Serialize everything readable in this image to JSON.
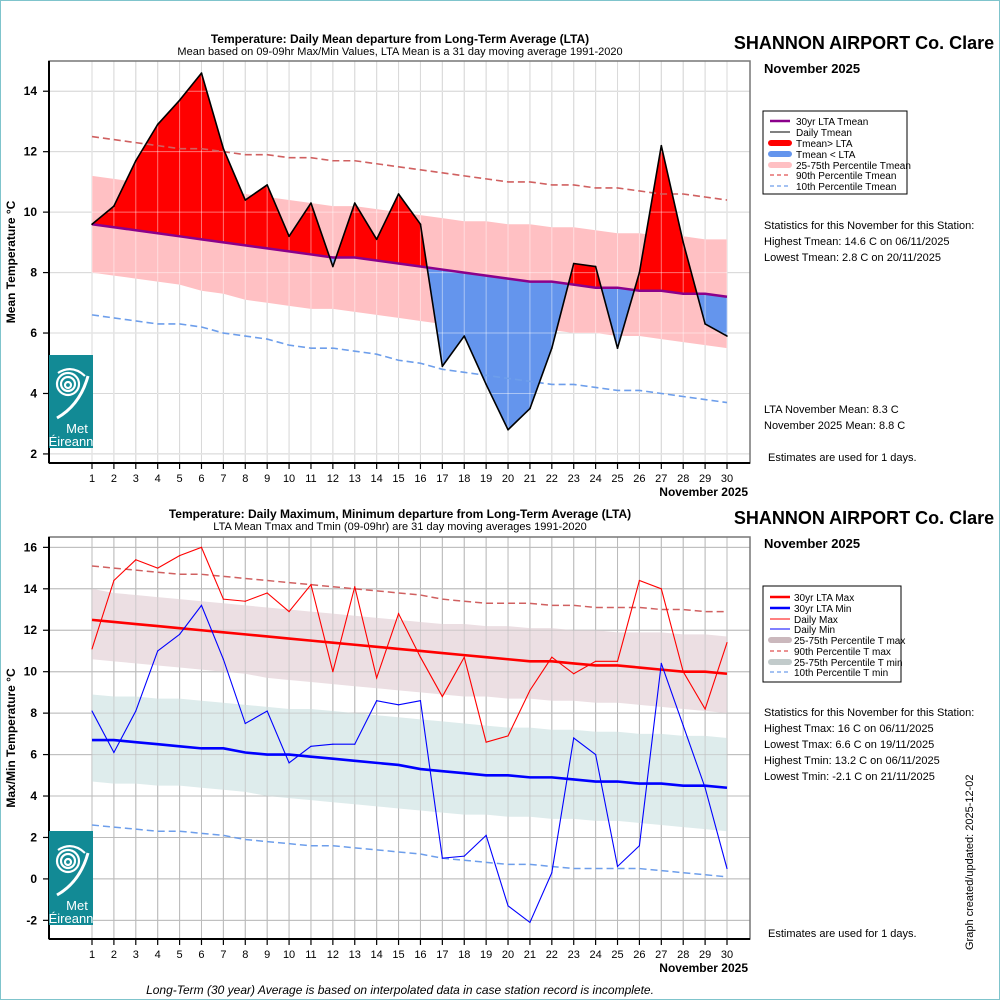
{
  "station": "SHANNON AIRPORT Co. Clare",
  "month_label": "November 2025",
  "footer_note": "Long-Term (30 year) Average is based on interpolated data in case station record is incomplete.",
  "updated_label": "Graph created/updated:  2025-12-02",
  "logo": {
    "line1": "Met",
    "line2": "Éireann",
    "icon": "met-eireann-swirl-icon"
  },
  "colors": {
    "above_lta": "#ff0000",
    "below_lta": "#6495ed",
    "lta_mean": "#8b008b",
    "pct_band_mean": "#ffc0c3",
    "p90": "#d06060",
    "p10": "#6d9eeb",
    "lta_max": "#ff0000",
    "lta_min": "#0000ff",
    "band_max": "#ecdfe3",
    "band_min": "#deecec",
    "logo_bg": "#128a95"
  },
  "chart_data": [
    {
      "type": "area",
      "title": "Temperature: Daily Mean departure from Long-Term Average (LTA)",
      "subtitle": "Mean based on 09-09hr Max/Min Values, LTA Mean is a 31 day moving average 1991-2020",
      "xlabel": "November 2025",
      "ylabel": "Mean Temperature °C",
      "ylim": [
        1.7,
        15.0
      ],
      "yticks": [
        2,
        4,
        6,
        8,
        10,
        12,
        14
      ],
      "x": [
        1,
        2,
        3,
        4,
        5,
        6,
        7,
        8,
        9,
        10,
        11,
        12,
        13,
        14,
        15,
        16,
        17,
        18,
        19,
        20,
        21,
        22,
        23,
        24,
        25,
        26,
        27,
        28,
        29,
        30
      ],
      "grid": true,
      "series": [
        {
          "name": "Daily Tmean",
          "values": [
            9.6,
            10.2,
            11.7,
            12.9,
            13.7,
            14.6,
            12.1,
            10.4,
            10.9,
            9.2,
            10.3,
            8.2,
            10.3,
            9.1,
            10.6,
            9.6,
            4.9,
            5.9,
            4.3,
            2.8,
            3.5,
            5.5,
            8.3,
            8.2,
            5.5,
            8.0,
            12.2,
            9.0,
            6.3,
            5.9
          ]
        },
        {
          "name": "30yr LTA Tmean",
          "values": [
            9.6,
            9.5,
            9.4,
            9.3,
            9.2,
            9.1,
            9.0,
            8.9,
            8.8,
            8.7,
            8.6,
            8.5,
            8.5,
            8.4,
            8.3,
            8.2,
            8.1,
            8.0,
            7.9,
            7.8,
            7.7,
            7.7,
            7.6,
            7.5,
            7.5,
            7.4,
            7.4,
            7.3,
            7.3,
            7.2
          ]
        },
        {
          "name": "90th Percentile Tmean",
          "values": [
            12.5,
            12.4,
            12.3,
            12.2,
            12.1,
            12.1,
            12.0,
            11.9,
            11.9,
            11.8,
            11.8,
            11.7,
            11.7,
            11.6,
            11.5,
            11.4,
            11.3,
            11.2,
            11.1,
            11.0,
            11.0,
            10.9,
            10.9,
            10.8,
            10.8,
            10.7,
            10.6,
            10.6,
            10.5,
            10.4
          ]
        },
        {
          "name": "10th Percentile Tmean",
          "values": [
            6.6,
            6.5,
            6.4,
            6.3,
            6.3,
            6.2,
            6.0,
            5.9,
            5.8,
            5.6,
            5.5,
            5.5,
            5.4,
            5.3,
            5.1,
            5.0,
            4.8,
            4.7,
            4.6,
            4.5,
            4.4,
            4.3,
            4.3,
            4.2,
            4.1,
            4.1,
            4.0,
            3.9,
            3.8,
            3.7
          ]
        },
        {
          "name": "25th Percentile Tmean",
          "values": [
            8.0,
            7.9,
            7.8,
            7.7,
            7.6,
            7.4,
            7.3,
            7.1,
            7.0,
            6.9,
            6.8,
            6.8,
            6.7,
            6.6,
            6.5,
            6.4,
            6.3,
            6.3,
            6.2,
            6.2,
            6.1,
            6.1,
            6.0,
            6.0,
            5.9,
            5.9,
            5.8,
            5.7,
            5.6,
            5.5
          ]
        },
        {
          "name": "75th Percentile Tmean",
          "values": [
            11.2,
            11.1,
            11.0,
            10.9,
            10.9,
            10.8,
            10.7,
            10.6,
            10.5,
            10.4,
            10.3,
            10.2,
            10.2,
            10.1,
            10.0,
            9.9,
            9.8,
            9.7,
            9.7,
            9.6,
            9.6,
            9.5,
            9.5,
            9.4,
            9.3,
            9.3,
            9.2,
            9.2,
            9.1,
            9.1
          ]
        }
      ],
      "legend": {
        "position": "right",
        "entries": [
          "30yr LTA Tmean",
          "Daily Tmean",
          "Tmean> LTA",
          "Tmean < LTA",
          "25-75th Percentile Tmean",
          "90th Percentile Tmean",
          "10th Percentile Tmean"
        ]
      },
      "stats_heading": "Statistics for this November for this Station:",
      "stats": [
        "Highest Tmean: 14.6 C on 06/11/2025",
        "Lowest Tmean: 2.8 C on 20/11/2025"
      ],
      "summary": [
        "LTA November Mean: 8.3 C",
        "November 2025 Mean: 8.8 C"
      ],
      "estimates_note": "Estimates are used for 1 days."
    },
    {
      "type": "line",
      "title": "Temperature: Daily Maximum, Minimum departure from Long-Term Average (LTA)",
      "subtitle": "LTA Mean Tmax and Tmin (09-09hr) are 31 day moving averages 1991-2020",
      "xlabel": "November 2025",
      "ylabel": "Max/Min Temperature °C",
      "ylim": [
        -2.9,
        16.5
      ],
      "yticks": [
        -2,
        0,
        2,
        4,
        6,
        8,
        10,
        12,
        14,
        16
      ],
      "x": [
        1,
        2,
        3,
        4,
        5,
        6,
        7,
        8,
        9,
        10,
        11,
        12,
        13,
        14,
        15,
        16,
        17,
        18,
        19,
        20,
        21,
        22,
        23,
        24,
        25,
        26,
        27,
        28,
        29,
        30
      ],
      "grid": true,
      "series": [
        {
          "name": "Daily Max",
          "values": [
            11.1,
            14.4,
            15.4,
            15.0,
            15.6,
            16.0,
            13.5,
            13.4,
            13.8,
            12.9,
            14.2,
            10.0,
            14.1,
            9.7,
            12.8,
            10.7,
            8.8,
            10.7,
            6.6,
            6.9,
            9.1,
            10.7,
            9.9,
            10.5,
            10.5,
            14.4,
            14.0,
            10.0,
            8.2,
            11.4
          ]
        },
        {
          "name": "Daily Min",
          "values": [
            8.1,
            6.1,
            8.1,
            11.0,
            11.8,
            13.2,
            10.6,
            7.5,
            8.1,
            5.6,
            6.4,
            6.5,
            6.5,
            8.6,
            8.4,
            8.6,
            1.0,
            1.1,
            2.1,
            -1.3,
            -2.1,
            0.3,
            6.8,
            6.0,
            0.6,
            1.6,
            10.4,
            7.4,
            4.4,
            0.5
          ]
        },
        {
          "name": "30yr LTA Max",
          "values": [
            12.5,
            12.4,
            12.3,
            12.2,
            12.1,
            12.0,
            11.9,
            11.8,
            11.7,
            11.6,
            11.5,
            11.4,
            11.3,
            11.2,
            11.1,
            11.0,
            10.9,
            10.8,
            10.7,
            10.6,
            10.5,
            10.5,
            10.4,
            10.3,
            10.3,
            10.2,
            10.1,
            10.0,
            10.0,
            9.9
          ]
        },
        {
          "name": "30yr LTA Min",
          "values": [
            6.7,
            6.7,
            6.6,
            6.5,
            6.4,
            6.3,
            6.3,
            6.1,
            6.0,
            6.0,
            5.9,
            5.8,
            5.7,
            5.6,
            5.5,
            5.3,
            5.2,
            5.1,
            5.0,
            5.0,
            4.9,
            4.9,
            4.8,
            4.7,
            4.7,
            4.6,
            4.6,
            4.5,
            4.5,
            4.4
          ]
        },
        {
          "name": "90th Percentile T max",
          "values": [
            15.1,
            15.0,
            14.9,
            14.8,
            14.7,
            14.7,
            14.6,
            14.5,
            14.4,
            14.3,
            14.2,
            14.1,
            14.0,
            13.9,
            13.8,
            13.7,
            13.5,
            13.4,
            13.3,
            13.3,
            13.3,
            13.2,
            13.2,
            13.1,
            13.1,
            13.1,
            13.0,
            13.0,
            12.9,
            12.9
          ]
        },
        {
          "name": "10th Percentile T min",
          "values": [
            2.6,
            2.5,
            2.4,
            2.3,
            2.3,
            2.2,
            2.1,
            1.9,
            1.8,
            1.7,
            1.6,
            1.6,
            1.5,
            1.4,
            1.3,
            1.2,
            1.0,
            0.9,
            0.8,
            0.7,
            0.7,
            0.6,
            0.5,
            0.5,
            0.5,
            0.5,
            0.4,
            0.3,
            0.2,
            0.1
          ]
        },
        {
          "name": "25th Percentile T max",
          "values": [
            10.6,
            10.5,
            10.4,
            10.3,
            10.2,
            10.1,
            10.0,
            9.9,
            9.7,
            9.6,
            9.5,
            9.4,
            9.3,
            9.2,
            9.1,
            9.0,
            8.9,
            8.8,
            8.8,
            8.7,
            8.7,
            8.6,
            8.6,
            8.5,
            8.5,
            8.4,
            8.3,
            8.2,
            8.1,
            8.0
          ]
        },
        {
          "name": "75th Percentile T max",
          "values": [
            14.0,
            13.8,
            13.7,
            13.6,
            13.5,
            13.4,
            13.3,
            13.2,
            13.1,
            13.0,
            12.9,
            12.8,
            12.7,
            12.6,
            12.5,
            12.4,
            12.3,
            12.3,
            12.2,
            12.2,
            12.1,
            12.1,
            12.0,
            12.0,
            11.9,
            11.9,
            11.9,
            11.8,
            11.8,
            11.7
          ]
        },
        {
          "name": "25th Percentile T min",
          "values": [
            4.7,
            4.6,
            4.6,
            4.5,
            4.5,
            4.4,
            4.3,
            4.2,
            4.0,
            3.9,
            3.8,
            3.7,
            3.6,
            3.5,
            3.4,
            3.3,
            3.2,
            3.1,
            3.1,
            3.0,
            3.0,
            2.9,
            2.9,
            2.8,
            2.8,
            2.7,
            2.6,
            2.5,
            2.4,
            2.3
          ]
        },
        {
          "name": "75th Percentile T min",
          "values": [
            8.9,
            8.8,
            8.8,
            8.7,
            8.7,
            8.6,
            8.5,
            8.4,
            8.3,
            8.2,
            8.2,
            8.1,
            8.0,
            7.9,
            7.8,
            7.7,
            7.6,
            7.5,
            7.4,
            7.3,
            7.3,
            7.2,
            7.2,
            7.1,
            7.1,
            7.0,
            7.0,
            6.9,
            6.9,
            6.8
          ]
        }
      ],
      "legend": {
        "position": "right",
        "entries": [
          "30yr LTA Max",
          "30yr LTA Min",
          "Daily Max",
          "Daily Min",
          "25-75th Percentile T max",
          "90th Percentile T max",
          "25-75th Percentile T min",
          "10th Percentile T min"
        ]
      },
      "stats_heading": "Statistics for this November for this Station:",
      "stats": [
        "Highest Tmax: 16 C on 06/11/2025",
        "Lowest Tmax: 6.6 C on 19/11/2025",
        "Highest Tmin: 13.2 C on 06/11/2025",
        "Lowest Tmin: -2.1 C on 21/11/2025"
      ],
      "estimates_note": "Estimates are used for 1 days."
    }
  ]
}
